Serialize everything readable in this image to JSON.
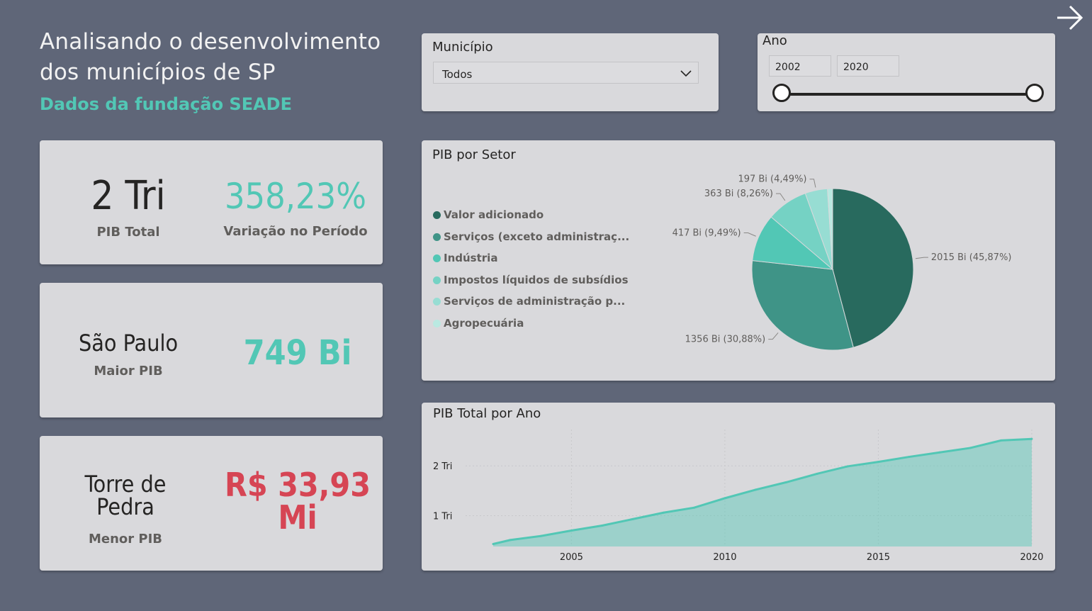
{
  "header": {
    "title": "Analisando o desenvolvimento dos municípios de SP",
    "subtitle": "Dados da fundação SEADE",
    "next_icon": "arrow-right-icon"
  },
  "filters": {
    "municipio": {
      "label": "Município",
      "selected": "Todos"
    },
    "ano": {
      "label": "Ano",
      "start": "2002",
      "end": "2020"
    }
  },
  "kpis": {
    "pib_total": {
      "value": "2 Tri",
      "label": "PIB Total"
    },
    "variacao": {
      "value": "358,23%",
      "label": "Variação no Período"
    },
    "maior": {
      "name": "São Paulo",
      "label": "Maior PIB",
      "value": "749 Bi"
    },
    "menor": {
      "name": "Torre de Pedra",
      "label": "Menor PIB",
      "value": "R$ 33,93 Mi"
    }
  },
  "colors": {
    "accent": "#52c7b5",
    "negative": "#d64554",
    "background": "#5f6678",
    "card": "#d9d9dc"
  },
  "pie": {
    "title": "PIB por Setor"
  },
  "line": {
    "title": "PIB Total por Ano"
  },
  "chart_data": [
    {
      "type": "pie",
      "title": "PIB por Setor",
      "legend_position": "left",
      "slices": [
        {
          "name": "Valor adicionado",
          "value": 2015,
          "label": "2015 Bi (45,87%)",
          "color": "#286a5e"
        },
        {
          "name": "Serviços (exceto administraç...",
          "value": 1356,
          "label": "1356 Bi (30,88%)",
          "color": "#3f9487"
        },
        {
          "name": "Indústria",
          "value": 417,
          "label": "417 Bi (9,49%)",
          "color": "#52c7b5"
        },
        {
          "name": "Impostos líquidos de subsídios",
          "value": 363,
          "label": "363 Bi (8,26%)",
          "color": "#75d2c4"
        },
        {
          "name": "Serviços de administração p...",
          "value": 197,
          "label": "197 Bi (4,49%)",
          "color": "#97ddd3"
        },
        {
          "name": "Agropecuária",
          "value": 45,
          "label": "",
          "color": "#bae9e1"
        }
      ]
    },
    {
      "type": "area",
      "title": "PIB Total por Ano",
      "x": [
        2002,
        2003,
        2004,
        2005,
        2006,
        2007,
        2008,
        2009,
        2010,
        2011,
        2012,
        2013,
        2014,
        2015,
        2016,
        2017,
        2018,
        2019,
        2020
      ],
      "y": [
        0.43,
        0.51,
        0.59,
        0.7,
        0.8,
        0.93,
        1.06,
        1.16,
        1.35,
        1.52,
        1.67,
        1.84,
        1.99,
        2.08,
        2.18,
        2.27,
        2.36,
        2.51,
        2.54
      ],
      "x_ticks": [
        "2005",
        "2010",
        "2015",
        "2020"
      ],
      "y_ticks": [
        "1 Tri",
        "2 Tri"
      ],
      "ylim": [
        0.38,
        2.9
      ],
      "xlim": [
        2001.55,
        2020
      ],
      "grid": true,
      "color": "#52c7b5"
    }
  ]
}
